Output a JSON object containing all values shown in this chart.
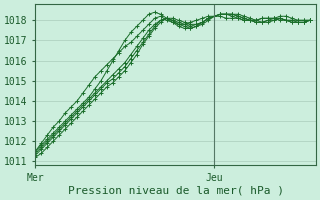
{
  "background_color": "#cceedd",
  "grid_color": "#aaccbb",
  "line_color": "#1a6e2a",
  "marker_color": "#1a6e2a",
  "title": "Pression niveau de la mer( hPa )",
  "yticks": [
    1011,
    1012,
    1013,
    1014,
    1015,
    1016,
    1017,
    1018
  ],
  "ylim": [
    1010.8,
    1018.8
  ],
  "xlim": [
    0,
    47
  ],
  "x_jeu": 30,
  "xtick_labels": [
    "Mer",
    "Jeu"
  ],
  "xtick_positions": [
    0,
    30
  ],
  "series": [
    [
      1011.5,
      1011.8,
      1012.1,
      1012.4,
      1012.7,
      1013.0,
      1013.3,
      1013.6,
      1013.9,
      1014.2,
      1014.6,
      1015.0,
      1015.5,
      1016.0,
      1016.5,
      1017.0,
      1017.4,
      1017.7,
      1018.0,
      1018.3,
      1018.4,
      1018.3,
      1018.1,
      1017.9,
      1017.8,
      1017.8,
      1017.9,
      1018.0,
      1018.1,
      1018.2,
      1018.2,
      1018.2,
      1018.1,
      1018.1,
      1018.1,
      1018.0,
      1018.0,
      1018.0,
      1018.1,
      1018.1,
      1018.1,
      1018.2,
      1018.2,
      1018.1,
      1018.0,
      1018.0,
      1018.0
    ],
    [
      1011.5,
      1011.9,
      1012.3,
      1012.7,
      1013.0,
      1013.4,
      1013.7,
      1014.0,
      1014.4,
      1014.8,
      1015.2,
      1015.5,
      1015.8,
      1016.1,
      1016.4,
      1016.7,
      1016.9,
      1017.2,
      1017.5,
      1017.8,
      1018.1,
      1018.2,
      1018.0,
      1017.9,
      1017.7,
      1017.6,
      1017.6,
      1017.7,
      1017.9,
      1018.1,
      1018.2,
      1018.3,
      1018.3,
      1018.2,
      1018.1,
      1018.0,
      1018.0,
      1018.0,
      1018.1,
      1018.1,
      1018.1,
      1018.0,
      1018.0,
      1018.0,
      1018.0,
      1018.0,
      1018.0
    ],
    [
      1011.4,
      1011.7,
      1012.0,
      1012.3,
      1012.6,
      1012.9,
      1013.2,
      1013.5,
      1013.8,
      1014.1,
      1014.4,
      1014.7,
      1015.0,
      1015.3,
      1015.6,
      1015.9,
      1016.3,
      1016.7,
      1017.1,
      1017.5,
      1017.8,
      1018.0,
      1018.1,
      1018.0,
      1017.8,
      1017.7,
      1017.6,
      1017.7,
      1017.8,
      1018.0,
      1018.2,
      1018.3,
      1018.3,
      1018.3,
      1018.2,
      1018.1,
      1018.0,
      1017.9,
      1017.9,
      1018.0,
      1018.0,
      1018.1,
      1018.0,
      1018.0,
      1017.9,
      1017.9,
      1018.0
    ],
    [
      1011.3,
      1011.6,
      1011.9,
      1012.2,
      1012.5,
      1012.8,
      1013.1,
      1013.4,
      1013.7,
      1014.0,
      1014.3,
      1014.6,
      1014.9,
      1015.1,
      1015.4,
      1015.7,
      1016.1,
      1016.5,
      1016.9,
      1017.3,
      1017.7,
      1018.0,
      1018.1,
      1018.0,
      1017.9,
      1017.8,
      1017.7,
      1017.8,
      1017.9,
      1018.1,
      1018.2,
      1018.3,
      1018.3,
      1018.3,
      1018.2,
      1018.1,
      1018.0,
      1017.9,
      1017.9,
      1018.0,
      1018.1,
      1018.1,
      1018.0,
      1017.9,
      1017.9,
      1017.9,
      1018.0
    ],
    [
      1011.2,
      1011.4,
      1011.7,
      1012.0,
      1012.3,
      1012.6,
      1012.9,
      1013.2,
      1013.5,
      1013.8,
      1014.1,
      1014.4,
      1014.7,
      1014.9,
      1015.2,
      1015.5,
      1015.9,
      1016.3,
      1016.8,
      1017.2,
      1017.6,
      1017.9,
      1018.1,
      1018.1,
      1018.0,
      1017.9,
      1017.8,
      1017.8,
      1017.9,
      1018.1,
      1018.2,
      1018.3,
      1018.3,
      1018.3,
      1018.3,
      1018.2,
      1018.1,
      1018.0,
      1017.9,
      1017.9,
      1018.0,
      1018.1,
      1018.0,
      1017.9,
      1017.9,
      1017.9,
      1018.0
    ]
  ],
  "vline_color": "#557766",
  "spine_color": "#336644",
  "tick_color": "#1a5a2a",
  "title_fontsize": 8,
  "tick_fontsize": 7
}
